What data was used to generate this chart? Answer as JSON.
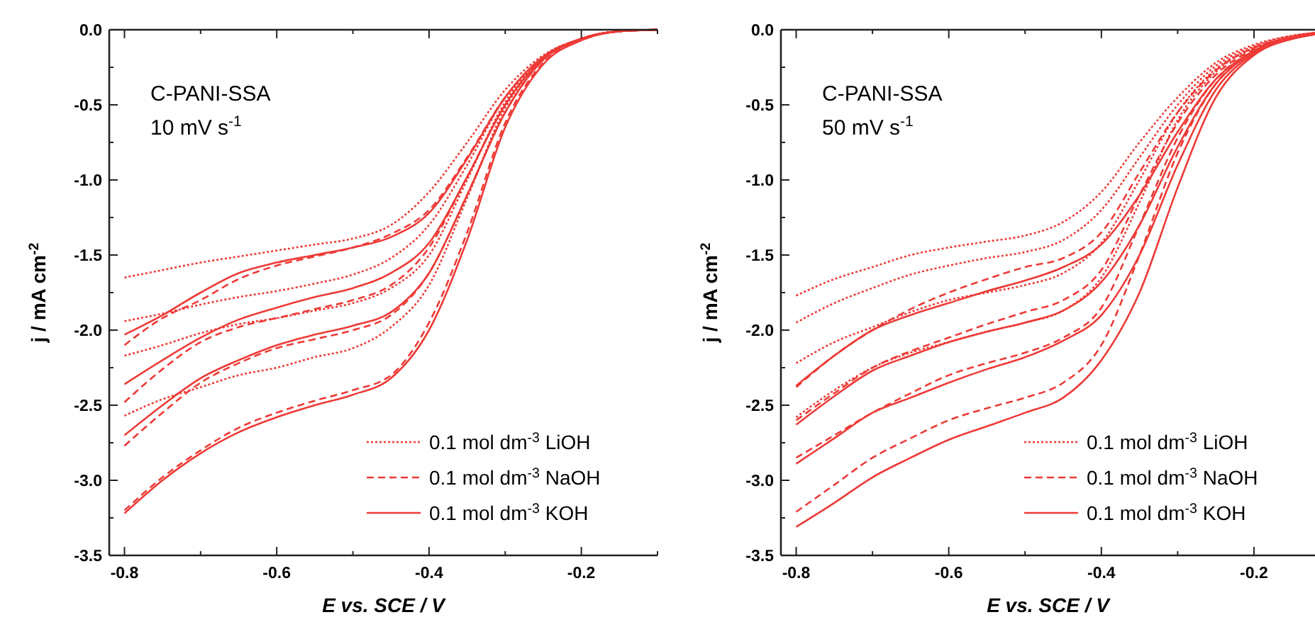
{
  "chart_data": [
    {
      "type": "line",
      "xlabel": "E vs. SCE / V",
      "ylabel": "j / mA cm$^{-2}$",
      "annotations": [
        "C-PANI-SSA",
        "10 mV s$^{-1}$"
      ],
      "legend": "bottom right",
      "grid": false,
      "xlim": [
        -0.82,
        -0.1
      ],
      "ylim": [
        -3.5,
        0
      ],
      "xticks": [
        -0.8,
        {
          "value": -0.7,
          "label": null
        },
        -0.6,
        {
          "value": -0.5,
          "label": null
        },
        -0.4,
        {
          "value": -0.3,
          "label": null
        },
        -0.2,
        {
          "value": -0.1,
          "label": null
        }
      ],
      "yticks": [
        {
          "value": -3.5,
          "label": "-3.5"
        },
        {
          "value": -3.25,
          "label": null
        },
        {
          "value": -3,
          "label": "-3.0"
        },
        {
          "value": -2.75,
          "label": null
        },
        {
          "value": -2.5,
          "label": "-2.5"
        },
        {
          "value": -2.25,
          "label": null
        },
        {
          "value": -2,
          "label": "-2.0"
        },
        {
          "value": -1.75,
          "label": null
        },
        {
          "value": -1.5,
          "label": "-1.5"
        },
        {
          "value": -1.25,
          "label": null
        },
        {
          "value": -1,
          "label": "-1.0"
        },
        {
          "value": -0.75,
          "label": null
        },
        {
          "value": -0.5,
          "label": "-0.5"
        },
        {
          "value": -0.25,
          "label": null
        },
        {
          "value": 0,
          "label": "0.0"
        }
      ],
      "x": [
        -0.8,
        -0.75,
        -0.7,
        -0.65,
        -0.6,
        -0.55,
        -0.5,
        -0.45,
        -0.4,
        -0.35,
        -0.3,
        -0.25,
        -0.2,
        -0.15,
        -0.1
      ],
      "series": [
        {
          "name": "0.1 mol dm$^{-3}$ LiOH",
          "color": "#ee3a36",
          "line_style": "dotted",
          "values": [
            -1.65,
            -1.6,
            -1.55,
            -1.51,
            -1.47,
            -1.43,
            -1.39,
            -1.3,
            -1.08,
            -0.75,
            -0.4,
            -0.17,
            -0.06,
            -0.01,
            0
          ]
        },
        {
          "color": "#ee3a36",
          "line_style": "dotted",
          "values": [
            -1.94,
            -1.89,
            -1.83,
            -1.78,
            -1.74,
            -1.69,
            -1.63,
            -1.52,
            -1.3,
            -0.9,
            -0.45,
            -0.18,
            -0.06,
            -0.01,
            0
          ]
        },
        {
          "color": "#ee3a36",
          "line_style": "dotted",
          "values": [
            -2.17,
            -2.1,
            -2.02,
            -1.96,
            -1.92,
            -1.87,
            -1.82,
            -1.72,
            -1.5,
            -1.0,
            -0.48,
            -0.19,
            -0.06,
            -0.01,
            0
          ]
        },
        {
          "color": "#ee3a36",
          "line_style": "dotted",
          "values": [
            -2.57,
            -2.46,
            -2.38,
            -2.3,
            -2.25,
            -2.18,
            -2.12,
            -1.98,
            -1.7,
            -1.12,
            -0.52,
            -0.2,
            -0.06,
            -0.01,
            0
          ]
        },
        {
          "name": "0.1 mol dm$^{-3}$ NaOH",
          "color": "#ee3a36",
          "line_style": "dashed",
          "values": [
            -2.1,
            -1.92,
            -1.8,
            -1.66,
            -1.57,
            -1.51,
            -1.45,
            -1.36,
            -1.2,
            -0.85,
            -0.45,
            -0.18,
            -0.06,
            -0.01,
            0
          ]
        },
        {
          "color": "#ee3a36",
          "line_style": "dashed",
          "values": [
            -2.48,
            -2.26,
            -2.08,
            -1.98,
            -1.92,
            -1.86,
            -1.8,
            -1.7,
            -1.45,
            -0.98,
            -0.5,
            -0.19,
            -0.06,
            -0.01,
            0
          ]
        },
        {
          "color": "#ee3a36",
          "line_style": "dashed",
          "values": [
            -2.77,
            -2.55,
            -2.35,
            -2.22,
            -2.12,
            -2.06,
            -2.0,
            -1.9,
            -1.62,
            -1.1,
            -0.55,
            -0.2,
            -0.06,
            -0.01,
            0
          ]
        },
        {
          "color": "#ee3a36",
          "line_style": "dashed",
          "values": [
            -3.2,
            -2.98,
            -2.8,
            -2.65,
            -2.55,
            -2.47,
            -2.4,
            -2.3,
            -1.95,
            -1.35,
            -0.62,
            -0.22,
            -0.07,
            -0.01,
            0
          ]
        },
        {
          "name": "0.1 mol dm$^{-3}$ KOH",
          "color": "#ee3a36",
          "line_style": "solid",
          "values": [
            -2.03,
            -1.9,
            -1.75,
            -1.62,
            -1.55,
            -1.5,
            -1.45,
            -1.38,
            -1.22,
            -0.86,
            -0.45,
            -0.18,
            -0.06,
            -0.01,
            0
          ]
        },
        {
          "color": "#ee3a36",
          "line_style": "solid",
          "values": [
            -2.36,
            -2.2,
            -2.05,
            -1.93,
            -1.85,
            -1.78,
            -1.72,
            -1.62,
            -1.42,
            -0.98,
            -0.5,
            -0.19,
            -0.06,
            -0.01,
            0
          ]
        },
        {
          "color": "#ee3a36",
          "line_style": "solid",
          "values": [
            -2.7,
            -2.5,
            -2.32,
            -2.2,
            -2.1,
            -2.03,
            -1.97,
            -1.88,
            -1.62,
            -1.1,
            -0.55,
            -0.2,
            -0.06,
            -0.01,
            0
          ]
        },
        {
          "color": "#ee3a36",
          "line_style": "solid",
          "values": [
            -3.22,
            -3.0,
            -2.82,
            -2.68,
            -2.58,
            -2.5,
            -2.43,
            -2.32,
            -2.0,
            -1.4,
            -0.65,
            -0.23,
            -0.07,
            -0.01,
            0
          ]
        }
      ]
    },
    {
      "type": "line",
      "xlabel": "E vs. SCE / V",
      "ylabel": "j / mA cm$^{-2}$",
      "annotations": [
        "C-PANI-SSA",
        "50 mV s$^{-1}$"
      ],
      "legend": "bottom right",
      "grid": false,
      "xlim": [
        -0.82,
        -0.12
      ],
      "ylim": [
        -3.5,
        0
      ],
      "xticks": [
        -0.8,
        {
          "value": -0.7,
          "label": null
        },
        -0.6,
        {
          "value": -0.5,
          "label": null
        },
        -0.4,
        {
          "value": -0.3,
          "label": null
        },
        -0.2
      ],
      "yticks": [
        {
          "value": -3.5,
          "label": "-3.5"
        },
        {
          "value": -3.25,
          "label": null
        },
        {
          "value": -3,
          "label": "-3.0"
        },
        {
          "value": -2.75,
          "label": null
        },
        {
          "value": -2.5,
          "label": "-2.5"
        },
        {
          "value": -2.25,
          "label": null
        },
        {
          "value": -2,
          "label": "-2.0"
        },
        {
          "value": -1.75,
          "label": null
        },
        {
          "value": -1.5,
          "label": "-1.5"
        },
        {
          "value": -1.25,
          "label": null
        },
        {
          "value": -1,
          "label": "-1.0"
        },
        {
          "value": -0.75,
          "label": null
        },
        {
          "value": -0.5,
          "label": "-0.5"
        },
        {
          "value": -0.25,
          "label": null
        },
        {
          "value": 0,
          "label": "0.0"
        }
      ],
      "x": [
        -0.8,
        -0.75,
        -0.7,
        -0.65,
        -0.6,
        -0.55,
        -0.5,
        -0.45,
        -0.4,
        -0.35,
        -0.3,
        -0.25,
        -0.2,
        -0.15,
        -0.12
      ],
      "series": [
        {
          "name": "0.1 mol dm$^{-3}$ LiOH",
          "color": "#ee3a36",
          "line_style": "dotted",
          "values": [
            -1.77,
            -1.66,
            -1.58,
            -1.5,
            -1.45,
            -1.41,
            -1.37,
            -1.28,
            -1.08,
            -0.75,
            -0.45,
            -0.22,
            -0.1,
            -0.04,
            -0.02
          ]
        },
        {
          "color": "#ee3a36",
          "line_style": "dotted",
          "values": [
            -1.95,
            -1.82,
            -1.72,
            -1.63,
            -1.57,
            -1.52,
            -1.48,
            -1.4,
            -1.2,
            -0.85,
            -0.5,
            -0.24,
            -0.11,
            -0.04,
            -0.02
          ]
        },
        {
          "color": "#ee3a36",
          "line_style": "dotted",
          "values": [
            -2.22,
            -2.08,
            -1.98,
            -1.88,
            -1.8,
            -1.75,
            -1.7,
            -1.62,
            -1.42,
            -1.0,
            -0.55,
            -0.26,
            -0.12,
            -0.05,
            -0.02
          ]
        },
        {
          "color": "#ee3a36",
          "line_style": "dotted",
          "values": [
            -2.58,
            -2.4,
            -2.25,
            -2.15,
            -2.08,
            -2.01,
            -1.95,
            -1.87,
            -1.65,
            -1.15,
            -0.6,
            -0.28,
            -0.12,
            -0.05,
            -0.02
          ]
        },
        {
          "name": "0.1 mol dm$^{-3}$ NaOH",
          "color": "#ee3a36",
          "line_style": "dashed",
          "values": [
            -2.38,
            -2.17,
            -2.0,
            -1.86,
            -1.75,
            -1.66,
            -1.58,
            -1.52,
            -1.35,
            -0.95,
            -0.55,
            -0.27,
            -0.12,
            -0.05,
            -0.02
          ]
        },
        {
          "color": "#ee3a36",
          "line_style": "dashed",
          "values": [
            -2.6,
            -2.42,
            -2.25,
            -2.14,
            -2.05,
            -1.96,
            -1.88,
            -1.8,
            -1.6,
            -1.1,
            -0.62,
            -0.3,
            -0.13,
            -0.05,
            -0.03
          ]
        },
        {
          "color": "#ee3a36",
          "line_style": "dashed",
          "values": [
            -2.85,
            -2.7,
            -2.55,
            -2.42,
            -2.3,
            -2.22,
            -2.15,
            -2.05,
            -1.85,
            -1.3,
            -0.72,
            -0.33,
            -0.14,
            -0.05,
            -0.03
          ]
        },
        {
          "color": "#ee3a36",
          "line_style": "dashed",
          "values": [
            -3.21,
            -3.03,
            -2.85,
            -2.72,
            -2.6,
            -2.52,
            -2.45,
            -2.35,
            -2.1,
            -1.5,
            -0.82,
            -0.36,
            -0.15,
            -0.06,
            -0.03
          ]
        },
        {
          "name": "0.1 mol dm$^{-3}$ KOH",
          "color": "#ee3a36",
          "line_style": "solid",
          "values": [
            -2.37,
            -2.17,
            -2.0,
            -1.9,
            -1.82,
            -1.74,
            -1.67,
            -1.58,
            -1.43,
            -1.1,
            -0.68,
            -0.33,
            -0.14,
            -0.05,
            -0.03
          ]
        },
        {
          "color": "#ee3a36",
          "line_style": "solid",
          "values": [
            -2.63,
            -2.44,
            -2.27,
            -2.17,
            -2.08,
            -2.01,
            -1.95,
            -1.87,
            -1.68,
            -1.3,
            -0.78,
            -0.36,
            -0.15,
            -0.06,
            -0.03
          ]
        },
        {
          "color": "#ee3a36",
          "line_style": "solid",
          "values": [
            -2.89,
            -2.72,
            -2.55,
            -2.45,
            -2.35,
            -2.26,
            -2.18,
            -2.07,
            -1.9,
            -1.5,
            -0.9,
            -0.4,
            -0.16,
            -0.06,
            -0.03
          ]
        },
        {
          "color": "#ee3a36",
          "line_style": "solid",
          "values": [
            -3.31,
            -3.15,
            -2.98,
            -2.85,
            -2.73,
            -2.64,
            -2.55,
            -2.45,
            -2.2,
            -1.75,
            -1.05,
            -0.45,
            -0.17,
            -0.06,
            -0.03
          ]
        }
      ]
    }
  ]
}
